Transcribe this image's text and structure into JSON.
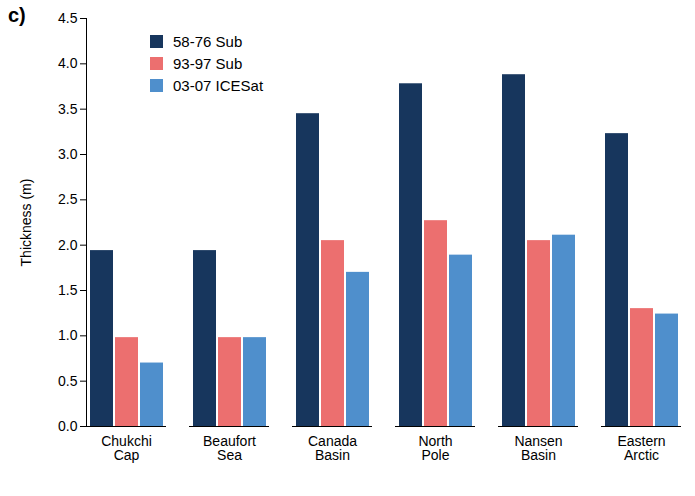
{
  "chart_data": {
    "type": "bar",
    "title": "c)",
    "y_label": "Thickness (m)",
    "categories": [
      "Chukchi Cap",
      "Beaufort Sea",
      "Canada Basin",
      "North Pole",
      "Nansen Basin",
      "Eastern Arctic"
    ],
    "series": [
      {
        "name": "58-76 Sub",
        "color": "#17365d",
        "values": [
          1.94,
          1.94,
          3.45,
          3.78,
          3.88,
          3.23
        ]
      },
      {
        "name": "93-97 Sub",
        "color": "#ec6f6f",
        "values": [
          0.98,
          0.98,
          2.05,
          2.27,
          2.05,
          1.3
        ]
      },
      {
        "name": "03-07 ICESat",
        "color": "#4f8fcc",
        "values": [
          0.7,
          0.98,
          1.7,
          1.89,
          2.11,
          1.24
        ]
      }
    ],
    "ylim": [
      0,
      4.5
    ],
    "yticks": [
      {
        "value": 0,
        "label": "0.0"
      },
      0.5,
      {
        "value": 1,
        "label": "1.0"
      },
      1.5,
      {
        "value": 2,
        "label": "2.0"
      },
      2.5,
      {
        "value": 3,
        "label": "3.0"
      },
      3.5,
      {
        "value": 4,
        "label": "4.0"
      },
      4.5
    ],
    "grid": false,
    "legend": "top-left"
  }
}
